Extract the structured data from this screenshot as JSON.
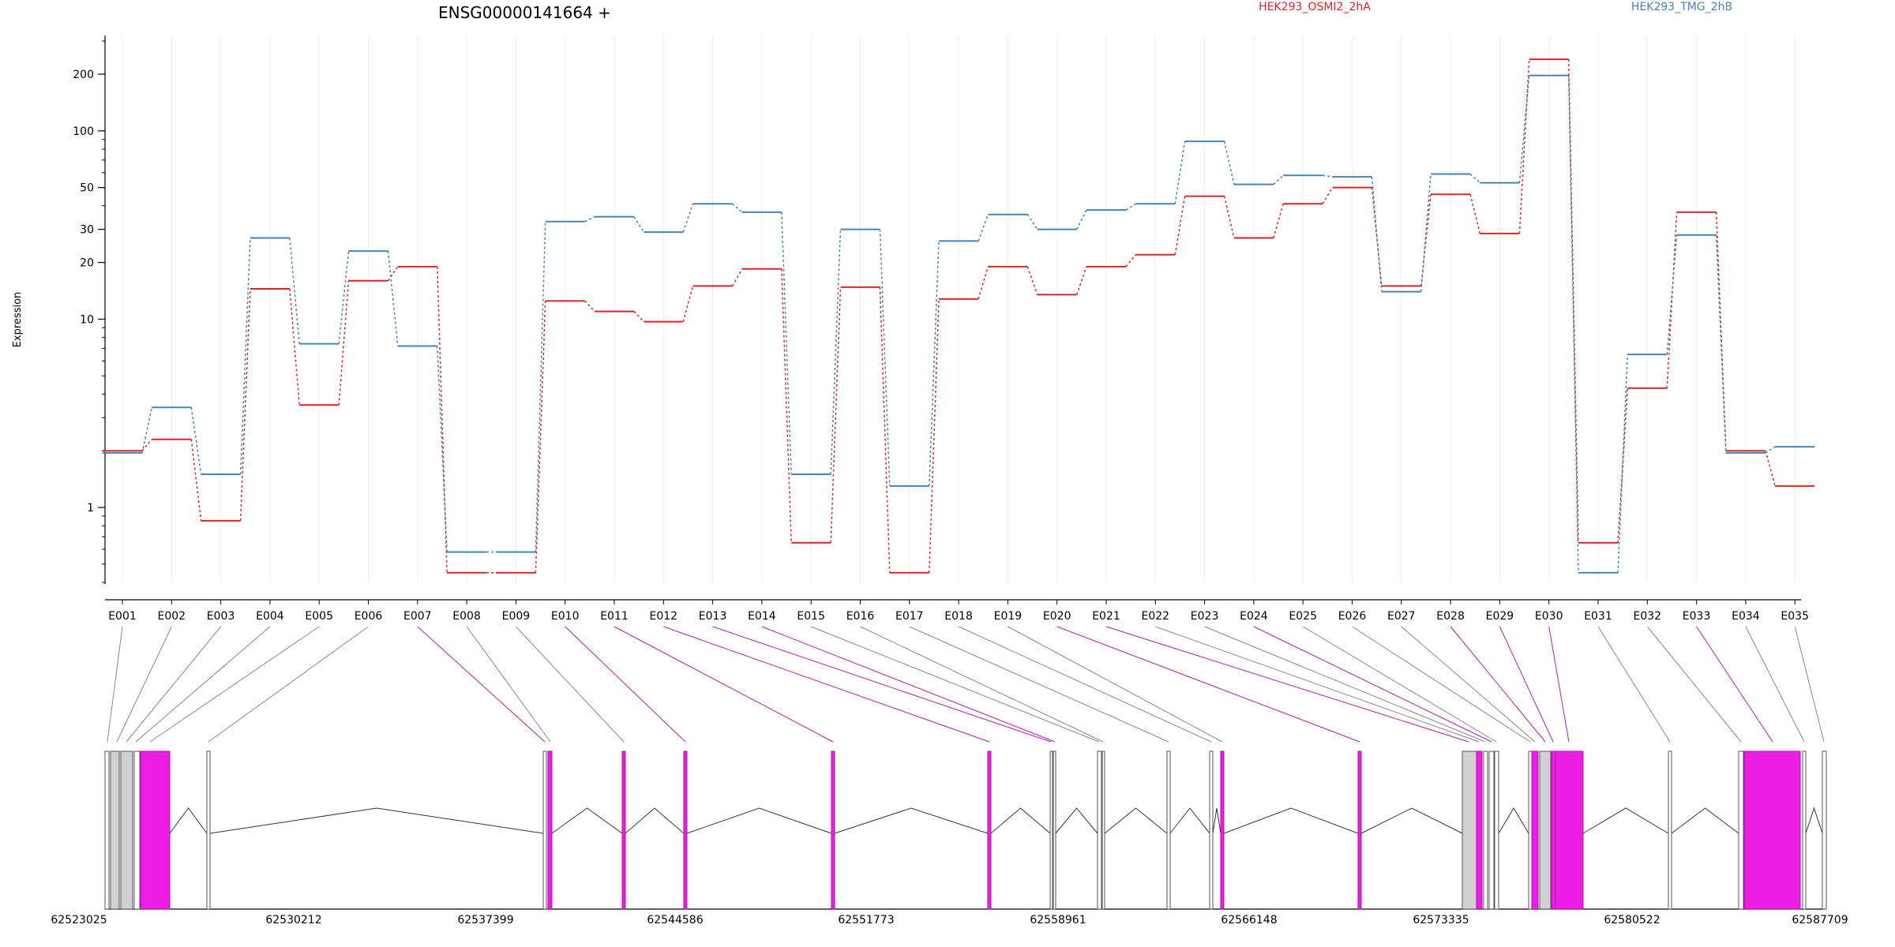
{
  "chart_data": {
    "type": "line",
    "title": "ENSG00000141664 +",
    "ylabel": "Expression",
    "y_scale": "log",
    "ylim": [
      0.4,
      300
    ],
    "y_ticks": [
      1,
      10,
      20,
      30,
      50,
      100,
      200
    ],
    "categories": [
      "E001",
      "E002",
      "E003",
      "E004",
      "E005",
      "E006",
      "E007",
      "E008",
      "E009",
      "E010",
      "E011",
      "E012",
      "E013",
      "E014",
      "E015",
      "E016",
      "E017",
      "E018",
      "E019",
      "E020",
      "E021",
      "E022",
      "E023",
      "E024",
      "E025",
      "E026",
      "E027",
      "E028",
      "E029",
      "E030",
      "E031",
      "E032",
      "E033",
      "E034",
      "E035"
    ],
    "series": [
      {
        "name": "HEK293_OSMI2_2hA",
        "color": "#d62728",
        "values": [
          2.0,
          2.3,
          0.85,
          14.5,
          3.5,
          16.0,
          19.0,
          0.45,
          0.45,
          12.5,
          11.0,
          9.7,
          15.0,
          18.5,
          0.65,
          14.8,
          0.45,
          12.8,
          19.0,
          13.5,
          19.0,
          22.0,
          45.0,
          27.0,
          41.0,
          50.0,
          15.0,
          46.0,
          28.5,
          240.0,
          0.65,
          4.3,
          37.0,
          2.0,
          1.3
        ]
      },
      {
        "name": "HEK293_TMG_2hB",
        "color": "#4682b4",
        "values": [
          1.95,
          3.4,
          1.5,
          27.0,
          7.4,
          23.0,
          7.2,
          0.58,
          0.58,
          33.0,
          35.0,
          29.0,
          41.0,
          37.0,
          1.5,
          30.0,
          1.3,
          26.0,
          36.0,
          30.0,
          38.0,
          41.0,
          88.0,
          52.0,
          58.0,
          57.0,
          14.0,
          59.0,
          53.0,
          197.0,
          0.45,
          6.5,
          28.0,
          1.95,
          2.1
        ]
      }
    ],
    "legend_placement": "top",
    "gene_model": {
      "coordinate_ticks": [
        "62523025",
        "62530212",
        "62537399",
        "62544586",
        "62551773",
        "62558961",
        "62566148",
        "62573335",
        "62580522",
        "62587709"
      ],
      "highlighted_exons": [
        "E007",
        "E010",
        "E011",
        "E012",
        "E013",
        "E014",
        "E020",
        "E021",
        "E024",
        "E028",
        "E029",
        "E030",
        "E033"
      ],
      "highlight_color": "#ee1de6",
      "exon_color": "#cccccc"
    }
  }
}
